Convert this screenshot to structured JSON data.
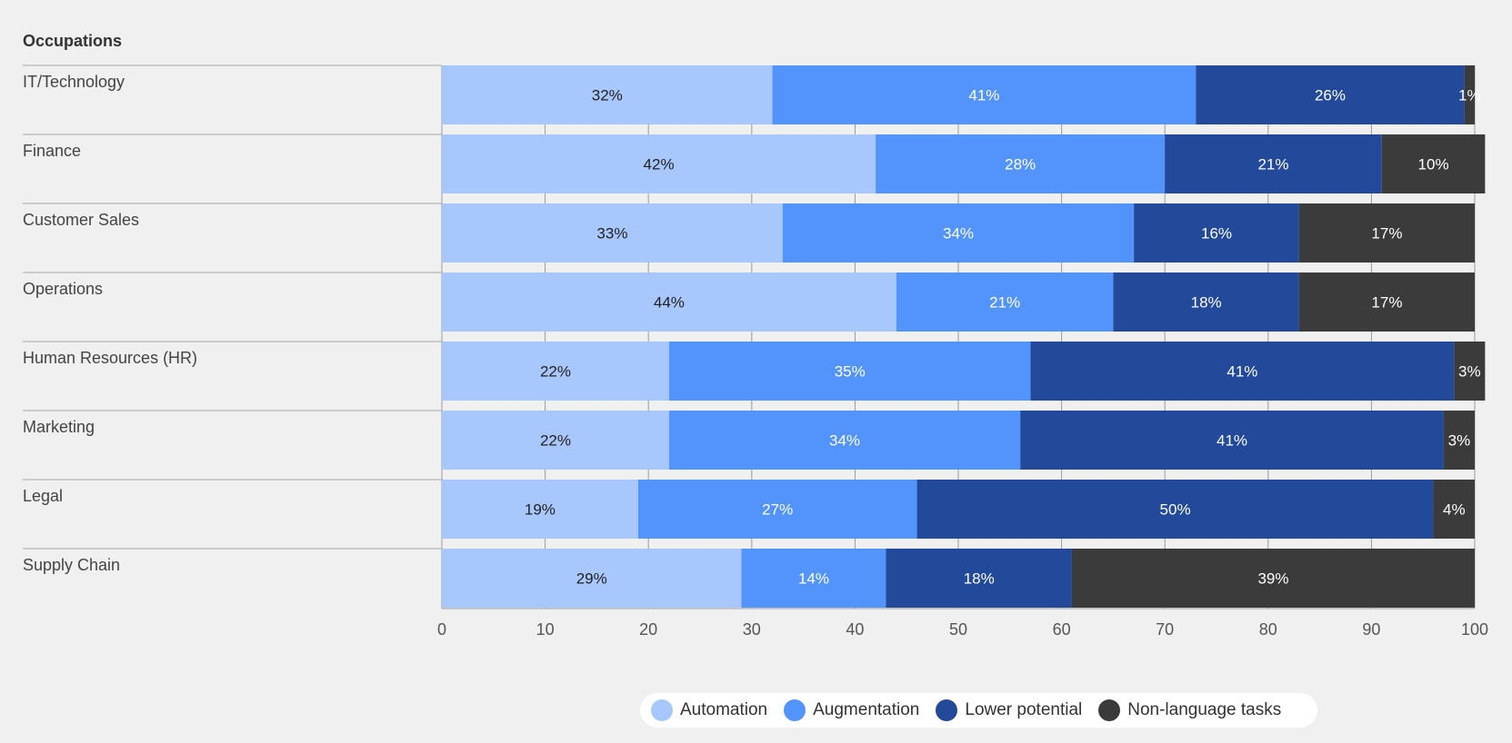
{
  "chart_data": {
    "type": "bar",
    "orientation": "horizontal",
    "stacked": true,
    "title": "Occupations",
    "categories": [
      "IT/Technology",
      "Finance",
      "Customer Sales",
      "Operations",
      "Human Resources (HR)",
      "Marketing",
      "Legal",
      "Supply Chain"
    ],
    "series": [
      {
        "name": "Automation",
        "color": "#a8c7fc",
        "label_color": "#222222",
        "values": [
          32,
          42,
          33,
          44,
          22,
          22,
          19,
          29
        ]
      },
      {
        "name": "Augmentation",
        "color": "#5294fb",
        "label_color": "#ffffff",
        "values": [
          41,
          28,
          34,
          21,
          35,
          34,
          27,
          14
        ]
      },
      {
        "name": "Lower potential",
        "color": "#234a9a",
        "label_color": "#ffffff",
        "values": [
          26,
          21,
          16,
          18,
          41,
          41,
          50,
          18
        ]
      },
      {
        "name": "Non-language tasks",
        "color": "#3b3b3b",
        "label_color": "#ffffff",
        "values": [
          1,
          10,
          17,
          17,
          3,
          3,
          4,
          39
        ]
      }
    ],
    "xlim": [
      0,
      100
    ],
    "xticks": [
      0,
      10,
      20,
      30,
      40,
      50,
      60,
      70,
      80,
      90,
      100
    ],
    "grid": true,
    "legend": "bottom-center",
    "label_suffix": "%"
  }
}
